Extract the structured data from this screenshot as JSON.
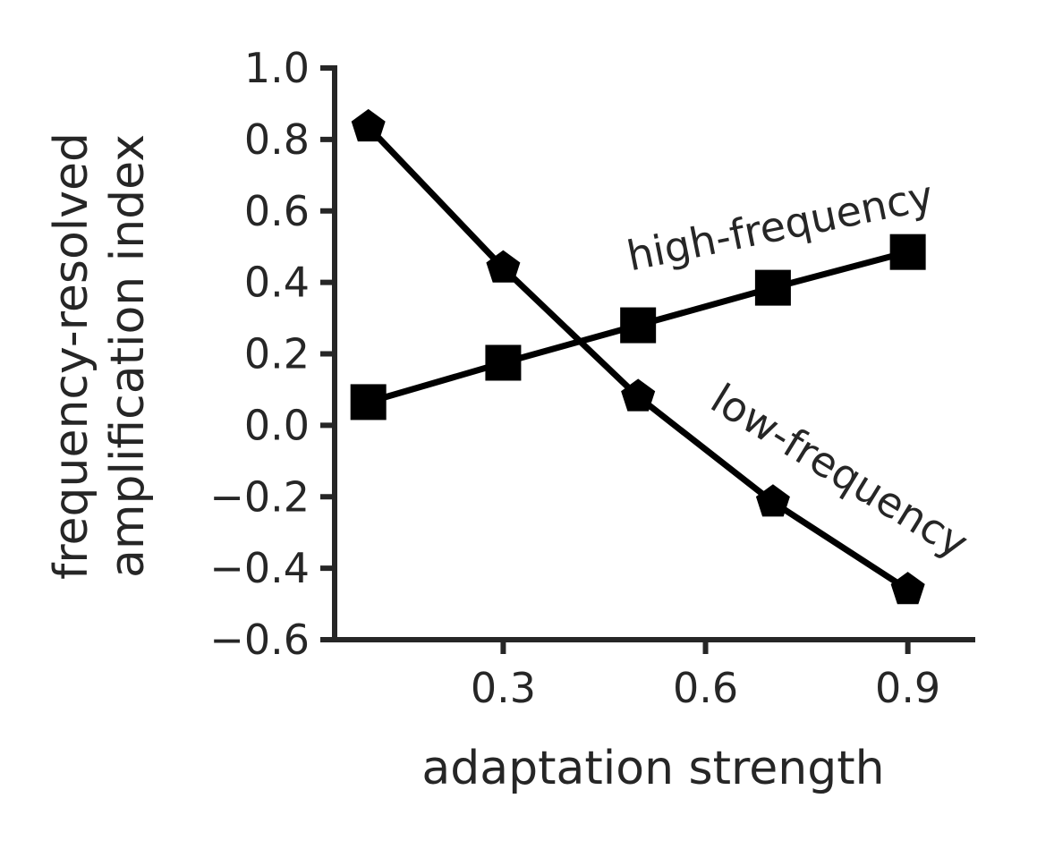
{
  "chart_data": {
    "type": "line",
    "title": "",
    "xlabel": "adaptation strength",
    "ylabel_lines": [
      "frequency-resolved",
      "amplification index"
    ],
    "xlim": [
      0.05,
      1.0
    ],
    "ylim": [
      -0.6,
      1.0
    ],
    "xticks": [
      0.3,
      0.6,
      0.9
    ],
    "xtick_labels": [
      "0.3",
      "0.6",
      "0.9"
    ],
    "yticks": [
      1.0,
      0.8,
      0.6,
      0.4,
      0.2,
      0.0,
      -0.2,
      -0.4,
      -0.6
    ],
    "ytick_labels": [
      "1.0",
      "0.8",
      "0.6",
      "0.4",
      "0.2",
      "0.0",
      "−0.2",
      "−0.4",
      "−0.6"
    ],
    "grid": false,
    "legend": "none",
    "series": [
      {
        "name": "high-frequency",
        "marker": "square",
        "color": "#000000",
        "x": [
          0.1,
          0.3,
          0.5,
          0.7,
          0.9
        ],
        "y": [
          0.065,
          0.175,
          0.28,
          0.385,
          0.485
        ]
      },
      {
        "name": "low-frequency",
        "marker": "pentagon",
        "color": "#000000",
        "x": [
          0.1,
          0.3,
          0.5,
          0.7,
          0.9
        ],
        "y": [
          0.835,
          0.44,
          0.08,
          -0.215,
          -0.46
        ]
      }
    ]
  }
}
